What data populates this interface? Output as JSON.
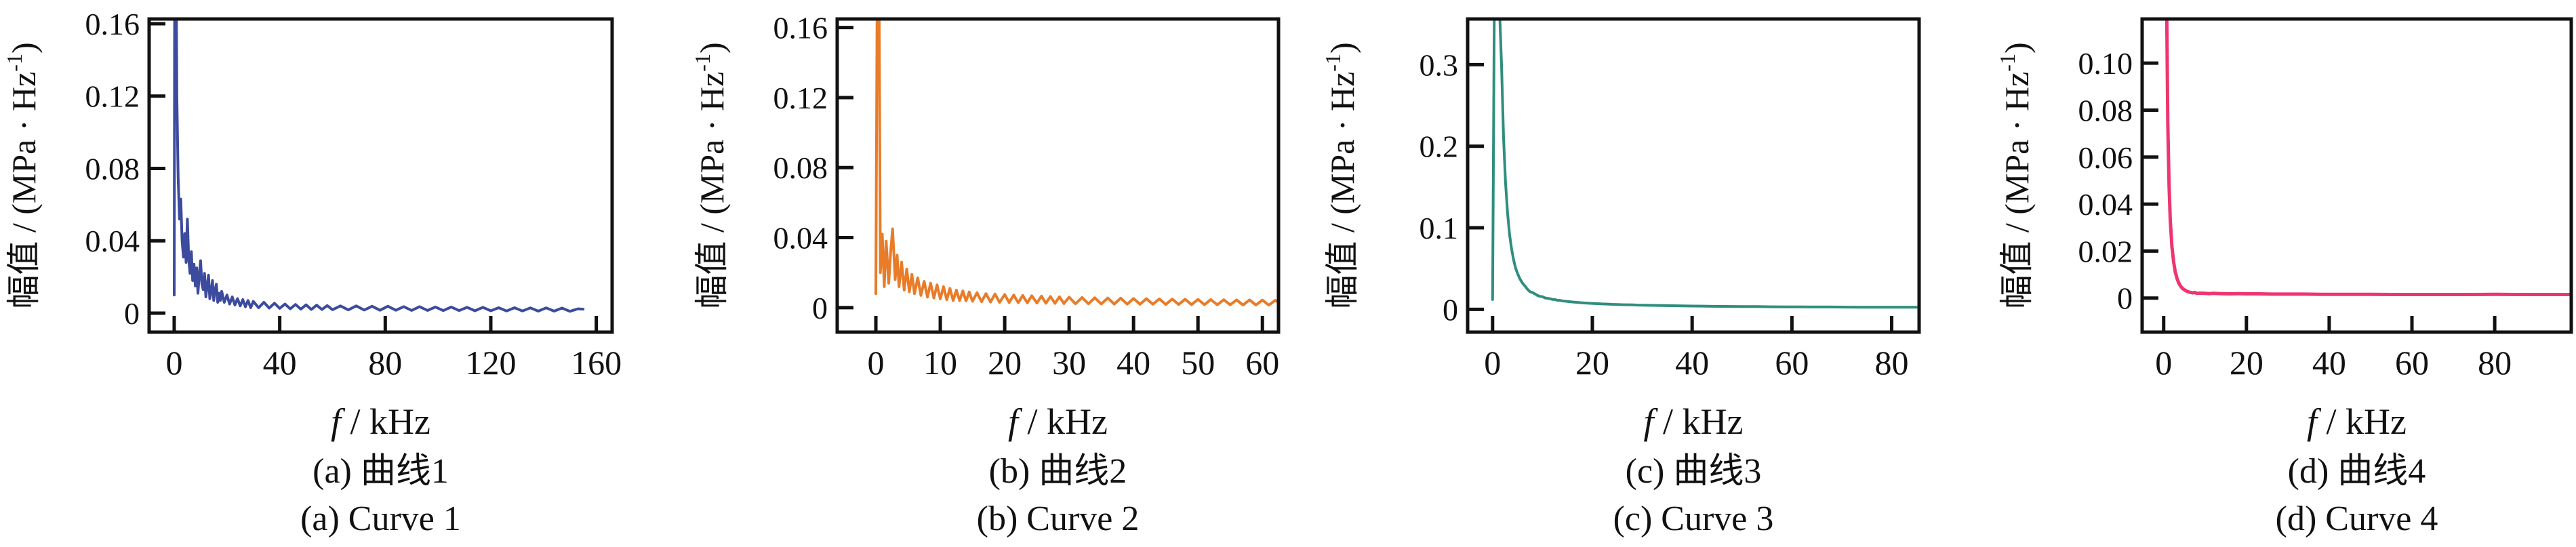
{
  "figure": {
    "y_axis_label": {
      "main": "幅值 / (MPa · Hz",
      "sup": "-1",
      "close": ")"
    },
    "x_axis_label": {
      "italic": "f",
      "rest": " / kHz"
    },
    "frame_color": "#111111",
    "background_color": "#ffffff"
  },
  "chart_data": [
    {
      "id": "a",
      "type": "line",
      "caption_cn": "(a) 曲线1",
      "caption_en": "(a) Curve 1",
      "color": "#3c4b9e",
      "xlabel": "f / kHz",
      "ylabel": "幅值 / (MPa · Hz⁻¹)",
      "xlim": [
        -9.5,
        166
      ],
      "ylim": [
        -0.0105,
        0.1626
      ],
      "xticks": [
        0,
        40,
        80,
        120,
        160
      ],
      "xtick_labels": [
        "0",
        "40",
        "80",
        "120",
        "160"
      ],
      "yticks": [
        0,
        0.04,
        0.08,
        0.12,
        0.16
      ],
      "ytick_labels": [
        "0",
        "0.04",
        "0.08",
        "0.12",
        "0.16"
      ],
      "points": [
        [
          0,
          0.01
        ],
        [
          0.3,
          0.3
        ],
        [
          1,
          0.12
        ],
        [
          1.5,
          0.075
        ],
        [
          2,
          0.052
        ],
        [
          2.5,
          0.063
        ],
        [
          3,
          0.04
        ],
        [
          3.5,
          0.031
        ],
        [
          4,
          0.044
        ],
        [
          4.5,
          0.028
        ],
        [
          5,
          0.052
        ],
        [
          5.5,
          0.03
        ],
        [
          6,
          0.022
        ],
        [
          6.5,
          0.034
        ],
        [
          7,
          0.018
        ],
        [
          7.5,
          0.027
        ],
        [
          8,
          0.015
        ],
        [
          8.5,
          0.025
        ],
        [
          9,
          0.011
        ],
        [
          9.5,
          0.021
        ],
        [
          10,
          0.029
        ],
        [
          10.5,
          0.016
        ],
        [
          11,
          0.013
        ],
        [
          11.5,
          0.022
        ],
        [
          12,
          0.009
        ],
        [
          12.5,
          0.015
        ],
        [
          13,
          0.021
        ],
        [
          13.5,
          0.008
        ],
        [
          14,
          0.012
        ],
        [
          14.5,
          0.018
        ],
        [
          15,
          0.007
        ],
        [
          15.5,
          0.013
        ],
        [
          16,
          0.016
        ],
        [
          16.5,
          0.006
        ],
        [
          17,
          0.011
        ],
        [
          17.5,
          0.007
        ],
        [
          18,
          0.012
        ],
        [
          19,
          0.006
        ],
        [
          20,
          0.01
        ],
        [
          21,
          0.005
        ],
        [
          22,
          0.009
        ],
        [
          23,
          0.0045
        ],
        [
          24,
          0.008
        ],
        [
          25,
          0.004
        ],
        [
          26,
          0.0075
        ],
        [
          27,
          0.0035
        ],
        [
          28,
          0.007
        ],
        [
          29,
          0.003
        ],
        [
          30,
          0.0065
        ],
        [
          32,
          0.003
        ],
        [
          34,
          0.006
        ],
        [
          36,
          0.0028
        ],
        [
          38,
          0.0055
        ],
        [
          40,
          0.0026
        ],
        [
          42,
          0.005
        ],
        [
          44,
          0.0024
        ],
        [
          46,
          0.0048
        ],
        [
          48,
          0.0022
        ],
        [
          50,
          0.0046
        ],
        [
          52,
          0.002
        ],
        [
          54,
          0.0044
        ],
        [
          56,
          0.002
        ],
        [
          58,
          0.0042
        ],
        [
          60,
          0.0019
        ],
        [
          63,
          0.004
        ],
        [
          66,
          0.0018
        ],
        [
          69,
          0.004
        ],
        [
          72,
          0.0017
        ],
        [
          75,
          0.0038
        ],
        [
          78,
          0.0016
        ],
        [
          81,
          0.0038
        ],
        [
          84,
          0.0016
        ],
        [
          87,
          0.0036
        ],
        [
          90,
          0.0015
        ],
        [
          93,
          0.0036
        ],
        [
          96,
          0.0015
        ],
        [
          99,
          0.0034
        ],
        [
          102,
          0.0014
        ],
        [
          105,
          0.0034
        ],
        [
          108,
          0.0014
        ],
        [
          111,
          0.0032
        ],
        [
          114,
          0.0013
        ],
        [
          117,
          0.0032
        ],
        [
          120,
          0.0013
        ],
        [
          123,
          0.003
        ],
        [
          126,
          0.0012
        ],
        [
          129,
          0.003
        ],
        [
          132,
          0.0012
        ],
        [
          135,
          0.0029
        ],
        [
          138,
          0.0011
        ],
        [
          141,
          0.0029
        ],
        [
          144,
          0.0011
        ],
        [
          147,
          0.0028
        ],
        [
          150,
          0.001
        ],
        [
          153,
          0.0024
        ],
        [
          155,
          0.0022
        ]
      ]
    },
    {
      "id": "b",
      "type": "line",
      "caption_cn": "(b) 曲线2",
      "caption_en": "(b) Curve 2",
      "color": "#e87c28",
      "xlabel": "f / kHz",
      "ylabel": "幅值 / (MPa · Hz⁻¹)",
      "xlim": [
        -6,
        62.5
      ],
      "ylim": [
        -0.014,
        0.1649
      ],
      "xticks": [
        0,
        10,
        20,
        30,
        40,
        50,
        60
      ],
      "xtick_labels": [
        "0",
        "10",
        "20",
        "30",
        "40",
        "50",
        "60"
      ],
      "yticks": [
        0,
        0.04,
        0.08,
        0.12,
        0.16
      ],
      "ytick_labels": [
        "0",
        "0.04",
        "0.08",
        "0.12",
        "0.16"
      ],
      "points": [
        [
          0,
          0.008
        ],
        [
          0.35,
          0.3
        ],
        [
          0.7,
          0.02
        ],
        [
          1,
          0.042
        ],
        [
          1.3,
          0.012
        ],
        [
          1.6,
          0.038
        ],
        [
          2,
          0.014
        ],
        [
          2.3,
          0.032
        ],
        [
          2.6,
          0.045
        ],
        [
          3,
          0.016
        ],
        [
          3.3,
          0.03
        ],
        [
          3.6,
          0.012
        ],
        [
          4,
          0.026
        ],
        [
          4.4,
          0.01
        ],
        [
          4.8,
          0.022
        ],
        [
          5.2,
          0.009
        ],
        [
          5.6,
          0.019
        ],
        [
          6,
          0.008
        ],
        [
          6.5,
          0.017
        ],
        [
          7,
          0.007
        ],
        [
          7.5,
          0.015
        ],
        [
          8,
          0.006
        ],
        [
          8.5,
          0.014
        ],
        [
          9,
          0.0055
        ],
        [
          9.5,
          0.013
        ],
        [
          10,
          0.005
        ],
        [
          10.5,
          0.012
        ],
        [
          11,
          0.0045
        ],
        [
          11.5,
          0.011
        ],
        [
          12,
          0.004
        ],
        [
          12.5,
          0.01
        ],
        [
          13,
          0.004
        ],
        [
          13.5,
          0.0095
        ],
        [
          14,
          0.0038
        ],
        [
          14.5,
          0.009
        ],
        [
          15,
          0.0036
        ],
        [
          15.7,
          0.0085
        ],
        [
          16.4,
          0.0034
        ],
        [
          17.1,
          0.008
        ],
        [
          17.8,
          0.0032
        ],
        [
          18.5,
          0.0078
        ],
        [
          19.2,
          0.003
        ],
        [
          20,
          0.0075
        ],
        [
          20.7,
          0.0029
        ],
        [
          21.4,
          0.0072
        ],
        [
          22.1,
          0.0028
        ],
        [
          22.8,
          0.007
        ],
        [
          23.5,
          0.0027
        ],
        [
          24.2,
          0.0068
        ],
        [
          25,
          0.0026
        ],
        [
          25.7,
          0.0066
        ],
        [
          26.4,
          0.0025
        ],
        [
          27.1,
          0.0064
        ],
        [
          27.8,
          0.0024
        ],
        [
          28.5,
          0.0062
        ],
        [
          29.2,
          0.0023
        ],
        [
          30,
          0.006
        ],
        [
          31,
          0.0022
        ],
        [
          32,
          0.0058
        ],
        [
          33,
          0.0022
        ],
        [
          34,
          0.0056
        ],
        [
          35,
          0.0021
        ],
        [
          36,
          0.0055
        ],
        [
          37,
          0.002
        ],
        [
          38,
          0.0054
        ],
        [
          39,
          0.002
        ],
        [
          40,
          0.0052
        ],
        [
          41,
          0.0019
        ],
        [
          42,
          0.0051
        ],
        [
          43,
          0.0019
        ],
        [
          44,
          0.005
        ],
        [
          45,
          0.0018
        ],
        [
          46,
          0.0049
        ],
        [
          47,
          0.0018
        ],
        [
          48,
          0.0048
        ],
        [
          49,
          0.0017
        ],
        [
          50,
          0.0047
        ],
        [
          51,
          0.0017
        ],
        [
          52,
          0.0046
        ],
        [
          53,
          0.0016
        ],
        [
          54,
          0.0045
        ],
        [
          55,
          0.0016
        ],
        [
          56,
          0.0044
        ],
        [
          57,
          0.0015
        ],
        [
          58,
          0.0044
        ],
        [
          59,
          0.0015
        ],
        [
          60,
          0.0043
        ],
        [
          61,
          0.0014
        ],
        [
          62,
          0.0042
        ],
        [
          62.5,
          0.003
        ]
      ]
    },
    {
      "id": "c",
      "type": "line",
      "caption_cn": "(c) 曲线3",
      "caption_en": "(c) Curve 3",
      "color": "#2f8e7e",
      "xlabel": "f / kHz",
      "ylabel": "幅值 / (MPa · Hz⁻¹)",
      "xlim": [
        -5,
        85.5
      ],
      "ylim": [
        -0.028,
        0.356
      ],
      "xticks": [
        0,
        20,
        40,
        60,
        80
      ],
      "xtick_labels": [
        "0",
        "20",
        "40",
        "60",
        "80"
      ],
      "yticks": [
        0,
        0.1,
        0.2,
        0.3
      ],
      "ytick_labels": [
        "0",
        "0.1",
        "0.2",
        "0.3"
      ],
      "points": [
        [
          0,
          0.012
        ],
        [
          0.4,
          0.42
        ],
        [
          1.2,
          0.4
        ],
        [
          1.8,
          0.3
        ],
        [
          2.2,
          0.21
        ],
        [
          2.6,
          0.155
        ],
        [
          3,
          0.118
        ],
        [
          3.4,
          0.092
        ],
        [
          3.8,
          0.074
        ],
        [
          4.2,
          0.061
        ],
        [
          4.6,
          0.051
        ],
        [
          5,
          0.044
        ],
        [
          5.5,
          0.037
        ],
        [
          6,
          0.032
        ],
        [
          6.5,
          0.0285
        ],
        [
          7,
          0.0245
        ],
        [
          7.5,
          0.0215
        ],
        [
          8,
          0.0205
        ],
        [
          8.5,
          0.019
        ],
        [
          9,
          0.017
        ],
        [
          9.5,
          0.0158
        ],
        [
          10,
          0.0155
        ],
        [
          10.5,
          0.014
        ],
        [
          11,
          0.0135
        ],
        [
          11.5,
          0.013
        ],
        [
          12,
          0.0121
        ],
        [
          12.5,
          0.012
        ],
        [
          13,
          0.011
        ],
        [
          13.5,
          0.011
        ],
        [
          14,
          0.0102
        ],
        [
          14.5,
          0.01
        ],
        [
          15,
          0.0096
        ],
        [
          16,
          0.009
        ],
        [
          17,
          0.0085
        ],
        [
          18,
          0.008
        ],
        [
          19,
          0.0076
        ],
        [
          20,
          0.0072
        ],
        [
          21,
          0.0069
        ],
        [
          22,
          0.0066
        ],
        [
          23,
          0.0064
        ],
        [
          24,
          0.0061
        ],
        [
          25,
          0.0059
        ],
        [
          26,
          0.0057
        ],
        [
          27,
          0.0056
        ],
        [
          28,
          0.0054
        ],
        [
          29,
          0.0052
        ],
        [
          30,
          0.0051
        ],
        [
          32,
          0.0048
        ],
        [
          34,
          0.0046
        ],
        [
          36,
          0.0044
        ],
        [
          38,
          0.0042
        ],
        [
          40,
          0.004
        ],
        [
          42,
          0.0039
        ],
        [
          44,
          0.0037
        ],
        [
          46,
          0.0036
        ],
        [
          48,
          0.0035
        ],
        [
          50,
          0.0034
        ],
        [
          53,
          0.0033
        ],
        [
          56,
          0.0031
        ],
        [
          59,
          0.003
        ],
        [
          62,
          0.0029
        ],
        [
          65,
          0.0028
        ],
        [
          68,
          0.0028
        ],
        [
          71,
          0.0027
        ],
        [
          74,
          0.0026
        ],
        [
          77,
          0.0026
        ],
        [
          80,
          0.0025
        ],
        [
          83,
          0.0025
        ],
        [
          85.5,
          0.0025
        ]
      ]
    },
    {
      "id": "d",
      "type": "line",
      "caption_cn": "(d) 曲线4",
      "caption_en": "(d) Curve 4",
      "color": "#ee3570",
      "xlabel": "f / kHz",
      "ylabel": "幅值 / (MPa · Hz⁻¹)",
      "xlim": [
        -5.2,
        98.5
      ],
      "ylim": [
        -0.0145,
        0.1188
      ],
      "xticks": [
        0,
        20,
        40,
        60,
        80
      ],
      "xtick_labels": [
        "0",
        "20",
        "40",
        "60",
        "80"
      ],
      "yticks": [
        0,
        0.02,
        0.04,
        0.06,
        0.08,
        0.1
      ],
      "ytick_labels": [
        "0",
        "0.02",
        "0.04",
        "0.06",
        "0.08",
        "0.10"
      ],
      "points": [
        [
          0.2,
          0.3
        ],
        [
          0.7,
          0.13
        ],
        [
          1,
          0.075
        ],
        [
          1.3,
          0.048
        ],
        [
          1.6,
          0.033
        ],
        [
          2,
          0.022
        ],
        [
          2.4,
          0.0155
        ],
        [
          2.8,
          0.0112
        ],
        [
          3.2,
          0.0085
        ],
        [
          3.6,
          0.0066
        ],
        [
          4,
          0.0053
        ],
        [
          4.5,
          0.0042
        ],
        [
          5,
          0.0035
        ],
        [
          5.5,
          0.003
        ],
        [
          6,
          0.0026
        ],
        [
          6.5,
          0.0024
        ],
        [
          7,
          0.0022
        ],
        [
          7.5,
          0.0024
        ],
        [
          8,
          0.002
        ],
        [
          9,
          0.0021
        ],
        [
          10,
          0.002
        ],
        [
          11,
          0.0019
        ],
        [
          12,
          0.002
        ],
        [
          14,
          0.0019
        ],
        [
          16,
          0.0018
        ],
        [
          18,
          0.0019
        ],
        [
          20,
          0.0018
        ],
        [
          23,
          0.0018
        ],
        [
          26,
          0.0017
        ],
        [
          30,
          0.0017
        ],
        [
          34,
          0.0017
        ],
        [
          38,
          0.0016
        ],
        [
          42,
          0.0016
        ],
        [
          46,
          0.0016
        ],
        [
          50,
          0.0016
        ],
        [
          55,
          0.0015
        ],
        [
          60,
          0.0015
        ],
        [
          65,
          0.0015
        ],
        [
          70,
          0.0015
        ],
        [
          75,
          0.0015
        ],
        [
          80,
          0.0016
        ],
        [
          85,
          0.0015
        ],
        [
          90,
          0.0015
        ],
        [
          95,
          0.0015
        ],
        [
          98.5,
          0.0015
        ]
      ]
    }
  ]
}
